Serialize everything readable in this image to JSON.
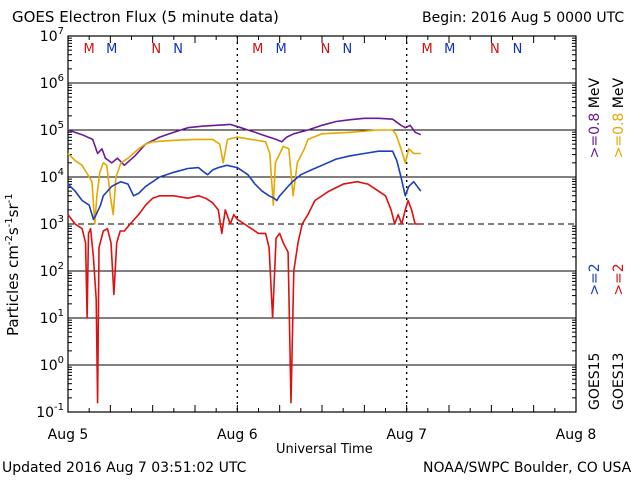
{
  "header": {
    "title": "GOES Electron Flux (5 minute data)",
    "begin": "Begin: 2016 Aug 5 0000 UTC"
  },
  "footer": {
    "updated": "Updated 2016 Aug  7 03:51:02 UTC",
    "credit": "NOAA/SWPC Boulder, CO USA"
  },
  "chart_data": {
    "type": "line",
    "title": "GOES Electron Flux (5 minute data)",
    "xlabel": "Universal Time",
    "ylabel": "Particles cm-2s-1sr-1",
    "yscale": "log",
    "xlim": [
      0,
      72
    ],
    "ylim_exp": [
      -1,
      7
    ],
    "x_ticks": [
      {
        "t": 0,
        "label": "Aug 5"
      },
      {
        "t": 24,
        "label": "Aug 6"
      },
      {
        "t": 48,
        "label": "Aug 7"
      },
      {
        "t": 72,
        "label": "Aug 8"
      }
    ],
    "y_ticks": [
      {
        "base": "10",
        "exp": "7",
        "value": 7
      },
      {
        "base": "10",
        "exp": "6",
        "value": 6
      },
      {
        "base": "10",
        "exp": "5",
        "value": 5
      },
      {
        "base": "10",
        "exp": "4",
        "value": 4
      },
      {
        "base": "10",
        "exp": "3",
        "value": 3
      },
      {
        "base": "10",
        "exp": "2",
        "value": 2
      },
      {
        "base": "10",
        "exp": "1",
        "value": 1
      },
      {
        "base": "10",
        "exp": "0",
        "value": 0
      },
      {
        "base": "10",
        "exp": "-1",
        "value": -1
      }
    ],
    "threshold_exp": 3,
    "mn_markers": [
      {
        "t": 3.0,
        "label": "M",
        "color": "#d01010"
      },
      {
        "t": 6.2,
        "label": "M",
        "color": "#1030c0"
      },
      {
        "t": 12.5,
        "label": "N",
        "color": "#d01010"
      },
      {
        "t": 15.6,
        "label": "N",
        "color": "#1030c0"
      },
      {
        "t": 26.9,
        "label": "M",
        "color": "#d01010"
      },
      {
        "t": 30.2,
        "label": "M",
        "color": "#1030c0"
      },
      {
        "t": 36.5,
        "label": "N",
        "color": "#d01010"
      },
      {
        "t": 39.6,
        "label": "N",
        "color": "#1030c0"
      },
      {
        "t": 50.9,
        "label": "M",
        "color": "#d01010"
      },
      {
        "t": 54.1,
        "label": "M",
        "color": "#1030c0"
      },
      {
        "t": 60.5,
        "label": "N",
        "color": "#d01010"
      },
      {
        "t": 63.7,
        "label": "N",
        "color": "#1030c0"
      }
    ],
    "legend": {
      "col1_sat": "GOES15",
      "col2_sat": "GOES13",
      "g15_2": ">=2",
      "g15_08": ">=0.8",
      "g13_2": ">=2",
      "g13_08": ">=0.8",
      "unit": "MeV"
    },
    "series": [
      {
        "name": "GOES15 >=0.8 MeV",
        "color": "#6a1b9a",
        "points": [
          [
            0,
            5.0
          ],
          [
            2,
            4.9
          ],
          [
            3.5,
            4.8
          ],
          [
            4.2,
            4.5
          ],
          [
            4.8,
            4.6
          ],
          [
            5.3,
            4.4
          ],
          [
            6.2,
            4.3
          ],
          [
            7,
            4.4
          ],
          [
            8,
            4.25
          ],
          [
            9.5,
            4.45
          ],
          [
            11,
            4.7
          ],
          [
            13,
            4.85
          ],
          [
            15,
            4.95
          ],
          [
            17,
            5.05
          ],
          [
            19,
            5.08
          ],
          [
            21,
            5.1
          ],
          [
            23,
            5.12
          ],
          [
            24.5,
            5.05
          ],
          [
            25.5,
            5.0
          ],
          [
            26.5,
            4.95
          ],
          [
            27.5,
            4.9
          ],
          [
            28.5,
            4.85
          ],
          [
            29.5,
            4.8
          ],
          [
            30.3,
            4.75
          ],
          [
            31,
            4.85
          ],
          [
            32,
            4.92
          ],
          [
            34,
            5.0
          ],
          [
            36,
            5.1
          ],
          [
            38,
            5.18
          ],
          [
            40,
            5.22
          ],
          [
            42,
            5.25
          ],
          [
            44,
            5.25
          ],
          [
            46,
            5.23
          ],
          [
            47.2,
            5.1
          ],
          [
            47.8,
            5.05
          ],
          [
            48.5,
            5.1
          ],
          [
            49.2,
            4.95
          ],
          [
            50,
            4.9
          ]
        ]
      },
      {
        "name": "GOES13 >=0.8 MeV",
        "color": "#e6a800",
        "points": [
          [
            0,
            4.5
          ],
          [
            1,
            4.35
          ],
          [
            2,
            4.25
          ],
          [
            3,
            4.0
          ],
          [
            3.4,
            3.9
          ],
          [
            3.8,
            3.0
          ],
          [
            4.1,
            3.6
          ],
          [
            4.5,
            4.1
          ],
          [
            5,
            4.3
          ],
          [
            5.5,
            4.25
          ],
          [
            6,
            3.6
          ],
          [
            6.4,
            3.2
          ],
          [
            6.8,
            4.0
          ],
          [
            7.5,
            4.3
          ],
          [
            8.5,
            4.4
          ],
          [
            10,
            4.6
          ],
          [
            11,
            4.7
          ],
          [
            12,
            4.75
          ],
          [
            15,
            4.78
          ],
          [
            18,
            4.8
          ],
          [
            20.5,
            4.8
          ],
          [
            21.5,
            4.7
          ],
          [
            22,
            4.3
          ],
          [
            22.6,
            4.8
          ],
          [
            24,
            4.85
          ],
          [
            26,
            4.8
          ],
          [
            28,
            4.75
          ],
          [
            28.6,
            4.5
          ],
          [
            29.1,
            3.4
          ],
          [
            29.4,
            4.3
          ],
          [
            30.5,
            4.65
          ],
          [
            31.3,
            4.6
          ],
          [
            31.9,
            3.6
          ],
          [
            32.5,
            4.3
          ],
          [
            33.5,
            4.6
          ],
          [
            34,
            4.8
          ],
          [
            36,
            4.92
          ],
          [
            40,
            4.95
          ],
          [
            44,
            5.0
          ],
          [
            46,
            5.0
          ],
          [
            46.5,
            4.9
          ],
          [
            47.2,
            4.6
          ],
          [
            47.8,
            4.3
          ],
          [
            48.3,
            4.6
          ],
          [
            49,
            4.5
          ],
          [
            50,
            4.5
          ]
        ]
      },
      {
        "name": "GOES15 >=2 MeV",
        "color": "#1a3fc0",
        "points": [
          [
            0,
            3.85
          ],
          [
            1,
            3.7
          ],
          [
            2,
            3.5
          ],
          [
            3,
            3.4
          ],
          [
            3.6,
            3.1
          ],
          [
            4,
            3.2
          ],
          [
            4.6,
            3.4
          ],
          [
            5,
            3.6
          ],
          [
            5.6,
            3.7
          ],
          [
            6.2,
            3.8
          ],
          [
            6.8,
            3.85
          ],
          [
            7.5,
            3.9
          ],
          [
            8.5,
            3.85
          ],
          [
            9.3,
            3.6
          ],
          [
            10,
            3.65
          ],
          [
            11,
            3.8
          ],
          [
            13,
            4.0
          ],
          [
            15,
            4.1
          ],
          [
            17,
            4.18
          ],
          [
            18.5,
            4.2
          ],
          [
            19.3,
            4.1
          ],
          [
            19.8,
            4.05
          ],
          [
            20.5,
            4.15
          ],
          [
            21.3,
            4.2
          ],
          [
            22.5,
            4.25
          ],
          [
            24,
            4.2
          ],
          [
            25.5,
            4.05
          ],
          [
            26.5,
            3.85
          ],
          [
            27.5,
            3.7
          ],
          [
            28.5,
            3.6
          ],
          [
            29.2,
            3.55
          ],
          [
            29.6,
            3.5
          ],
          [
            30,
            3.6
          ],
          [
            30.6,
            3.7
          ],
          [
            31.2,
            3.8
          ],
          [
            31.8,
            3.9
          ],
          [
            33,
            4.05
          ],
          [
            34.5,
            4.15
          ],
          [
            36,
            4.25
          ],
          [
            38,
            4.38
          ],
          [
            40,
            4.45
          ],
          [
            42,
            4.5
          ],
          [
            44,
            4.55
          ],
          [
            46,
            4.55
          ],
          [
            46.6,
            4.35
          ],
          [
            47.2,
            4.0
          ],
          [
            47.8,
            3.6
          ],
          [
            48.3,
            3.8
          ],
          [
            49,
            3.9
          ],
          [
            50,
            3.7
          ]
        ]
      },
      {
        "name": "GOES13 >=2 MeV",
        "color": "#dd1111",
        "points": [
          [
            0,
            3.2
          ],
          [
            1,
            3.0
          ],
          [
            2,
            2.9
          ],
          [
            2.5,
            2.6
          ],
          [
            2.7,
            1.0
          ],
          [
            2.9,
            2.8
          ],
          [
            3.2,
            2.9
          ],
          [
            3.6,
            2.3
          ],
          [
            4.0,
            1.4
          ],
          [
            4.2,
            -0.8
          ],
          [
            4.4,
            2.5
          ],
          [
            5,
            2.85
          ],
          [
            5.6,
            2.9
          ],
          [
            6.1,
            2.6
          ],
          [
            6.5,
            1.5
          ],
          [
            6.9,
            2.6
          ],
          [
            7.4,
            2.85
          ],
          [
            8,
            2.85
          ],
          [
            8.8,
            3.0
          ],
          [
            10,
            3.2
          ],
          [
            11,
            3.4
          ],
          [
            12,
            3.55
          ],
          [
            13,
            3.6
          ],
          [
            15,
            3.6
          ],
          [
            17,
            3.55
          ],
          [
            18.5,
            3.6
          ],
          [
            19.5,
            3.55
          ],
          [
            20.5,
            3.45
          ],
          [
            21.3,
            3.3
          ],
          [
            21.8,
            2.8
          ],
          [
            22.3,
            3.3
          ],
          [
            23,
            3.0
          ],
          [
            23.5,
            3.2
          ],
          [
            24,
            3.1
          ],
          [
            25,
            3.0
          ],
          [
            26,
            2.9
          ],
          [
            27,
            2.8
          ],
          [
            28,
            2.8
          ],
          [
            28.5,
            2.5
          ],
          [
            29.0,
            1.0
          ],
          [
            29.5,
            2.7
          ],
          [
            30,
            2.8
          ],
          [
            30.5,
            2.6
          ],
          [
            31.2,
            2.4
          ],
          [
            31.6,
            -0.8
          ],
          [
            32.0,
            2.0
          ],
          [
            32.6,
            2.6
          ],
          [
            33.2,
            3.0
          ],
          [
            34,
            3.2
          ],
          [
            35,
            3.5
          ],
          [
            37,
            3.7
          ],
          [
            39,
            3.85
          ],
          [
            41,
            3.9
          ],
          [
            42.5,
            3.85
          ],
          [
            44,
            3.7
          ],
          [
            45,
            3.6
          ],
          [
            45.8,
            3.3
          ],
          [
            46.3,
            3.0
          ],
          [
            46.8,
            3.2
          ],
          [
            47.3,
            3.0
          ],
          [
            47.8,
            3.3
          ],
          [
            48.2,
            3.5
          ],
          [
            48.7,
            3.3
          ],
          [
            49.2,
            3.0
          ],
          [
            50,
            3.0
          ]
        ]
      }
    ]
  }
}
